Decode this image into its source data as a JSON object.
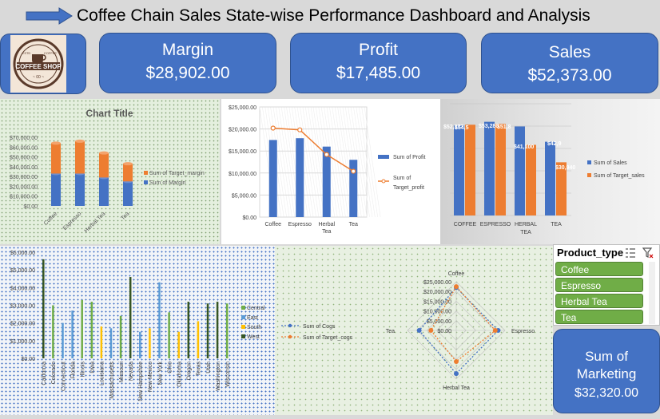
{
  "header": {
    "title": "Coffee Chain Sales State-wise Performance Dashboard and Analysis"
  },
  "logo": {
    "line1": "COFFEE SHOP",
    "top_left": "ESTD",
    "top_right": "COFFEE"
  },
  "kpis": [
    {
      "label": "Margin",
      "value": "$28,902.00"
    },
    {
      "label": "Profit",
      "value": "$17,485.00"
    },
    {
      "label": "Sales",
      "value": "$52,373.00"
    }
  ],
  "marketing_card": {
    "label_line1": "Sum of",
    "label_line2": "Marketing",
    "value": "$32,320.00"
  },
  "slicer": {
    "title": "Product_type",
    "items": [
      "Coffee",
      "Espresso",
      "Herbal Tea",
      "Tea"
    ]
  },
  "colors": {
    "blue": "#4472c4",
    "orange": "#ed7d31",
    "green": "#70ad47",
    "dark_green": "#375623",
    "yellow": "#ffc000",
    "light_blue": "#5b9bd5"
  },
  "chart_data": [
    {
      "type": "bar",
      "title": "Chart Title",
      "stacked": true,
      "categories": [
        "Coffee",
        "Espresso",
        "Herbal Tea",
        "Tea"
      ],
      "series": [
        {
          "name": "Sum of Margin",
          "values": [
            33000,
            33000,
            29000,
            25000
          ]
        },
        {
          "name": "Sum of Target_margin",
          "values": [
            31000,
            33000,
            25000,
            18000
          ]
        }
      ],
      "ytick_labels": [
        "$0.00",
        "$10,000.00",
        "$20,000.00",
        "$30,000.00",
        "$40,000.00",
        "$50,000.00",
        "$60,000.00",
        "$70,000.00"
      ],
      "ylim": [
        0,
        70000
      ],
      "legend": "right"
    },
    {
      "type": "bar",
      "categories": [
        "Coffee",
        "Espresso",
        "Herbal Tea",
        "Tea"
      ],
      "series": [
        {
          "name": "Sum of Profit",
          "values": [
            17500,
            17900,
            16000,
            13000
          ]
        },
        {
          "name": "Sum of Target_profit",
          "values": [
            20200,
            19800,
            14200,
            10400
          ]
        }
      ],
      "ytick_labels": [
        "$0.00",
        "$5,000.00",
        "$10,000.00",
        "$15,000.00",
        "$20,000.00",
        "$25,000.00"
      ],
      "ylim": [
        0,
        25000
      ],
      "legend": "right"
    },
    {
      "type": "bar",
      "categories": [
        "COFFEE",
        "ESPRESSO",
        "HERBAL TEA",
        "TEA"
      ],
      "series": [
        {
          "name": "Sum of Sales",
          "values": [
            52373,
            54500,
            51800,
            42900
          ]
        },
        {
          "name": "Sum of Target_sales",
          "values": [
            52800,
            53280,
            41100,
            30940
          ]
        }
      ],
      "data_labels": [
        "$52,373",
        "$54,5",
        "$53,280",
        "$51,8",
        "$41,100",
        "$42,9",
        "$30,940"
      ],
      "ylim": [
        0,
        65000
      ],
      "legend": "right"
    },
    {
      "type": "bar",
      "categories": [
        "California",
        "Colorado",
        "Connecticut",
        "Florida",
        "Illinois",
        "Iowa",
        "Louisiana",
        "Massachusetts",
        "Missouri",
        "Nevada",
        "New Hampshire",
        "New Mexico",
        "New York",
        "Ohio",
        "Oklahoma",
        "Oregon",
        "Texas",
        "Utah",
        "Washington",
        "Wisconsin"
      ],
      "series": [
        {
          "name": "Central",
          "values": [
            0,
            3000,
            0,
            0,
            3300,
            3200,
            0,
            0,
            2400,
            0,
            0,
            0,
            0,
            2600,
            0,
            0,
            0,
            0,
            0,
            3100
          ]
        },
        {
          "name": "East",
          "values": [
            0,
            0,
            2000,
            2700,
            0,
            0,
            0,
            1700,
            0,
            0,
            1500,
            0,
            4300,
            0,
            0,
            0,
            0,
            0,
            0,
            0
          ]
        },
        {
          "name": "South",
          "values": [
            0,
            0,
            0,
            0,
            0,
            0,
            1800,
            0,
            0,
            0,
            0,
            1700,
            0,
            0,
            1500,
            0,
            2100,
            0,
            0,
            0
          ]
        },
        {
          "name": "West",
          "values": [
            5600,
            0,
            0,
            0,
            0,
            0,
            0,
            0,
            0,
            4600,
            0,
            0,
            0,
            0,
            0,
            3200,
            0,
            3100,
            3200,
            0
          ]
        }
      ],
      "ytick_labels": [
        "$0.00",
        "$1,000.00",
        "$2,000.00",
        "$3,000.00",
        "$4,000.00",
        "$5,000.00",
        "$6,000.00"
      ],
      "ylim": [
        0,
        6000
      ],
      "legend": "right"
    },
    {
      "type": "radar",
      "categories": [
        "Coffee",
        "Espresso",
        "Herbal Tea",
        "Tea"
      ],
      "series": [
        {
          "name": "Sum of Cogs",
          "values": [
            22000,
            21500,
            22200,
            19000
          ]
        },
        {
          "name": "Sum of Target_cogs",
          "values": [
            22500,
            20000,
            16000,
            13000
          ]
        }
      ],
      "ytick_labels": [
        "$0.00",
        "$5,000.00",
        "$10,000.00",
        "$15,000.00",
        "$20,000.00",
        "$25,000.00"
      ],
      "ylim": [
        0,
        25000
      ],
      "legend": "left"
    }
  ]
}
